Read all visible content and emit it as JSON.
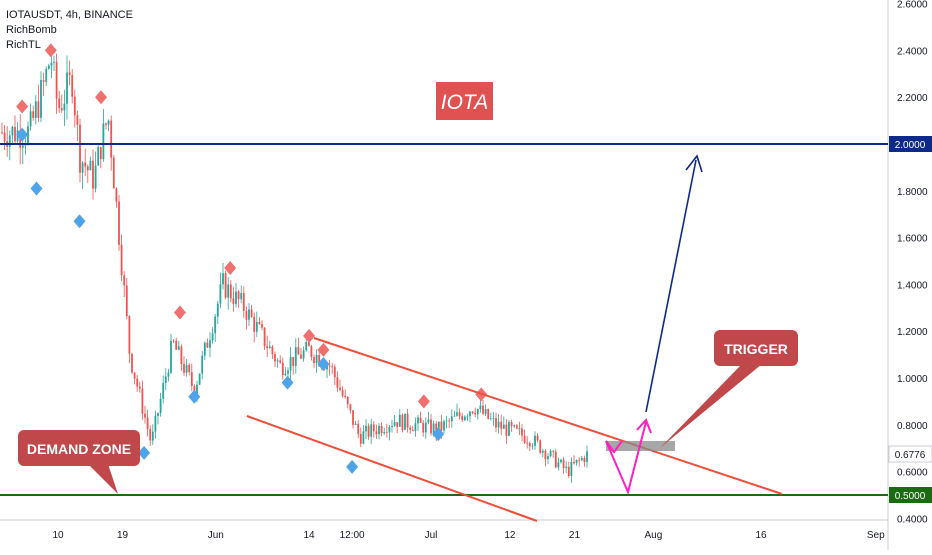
{
  "chart_data": {
    "type": "candlestick",
    "symbol_line": "IOTAUSDT, 4h, BINANCE",
    "indicators": [
      "RichBomb",
      "RichTL"
    ],
    "title_badge": "IOTA",
    "y_ticks": [
      "2.6000",
      "2.4000",
      "2.2000",
      "2.0000",
      "1.8000",
      "1.6000",
      "1.4000",
      "1.2000",
      "1.0000",
      "0.8000",
      "0.6000",
      "0.4000"
    ],
    "x_ticks": [
      "10",
      "19",
      "Jun",
      "14",
      "12:00",
      "Jul",
      "12",
      "21",
      "Aug",
      "16",
      "Sep"
    ],
    "last_price": "0.6776",
    "levels": [
      {
        "label": "2.0000",
        "value": 2.0,
        "color": "#0d2a8a"
      },
      {
        "label": "0.5000",
        "value": 0.5,
        "color": "#1b6b12"
      }
    ],
    "annotations": [
      {
        "text": "TRIGGER"
      },
      {
        "text": "DEMAND ZONE"
      }
    ],
    "ohlc": [
      {
        "x": "2021-05-06",
        "close": 2.05
      },
      {
        "x": "2021-05-08",
        "close": 2.25
      },
      {
        "x": "2021-05-09",
        "close": 2.38
      },
      {
        "x": "2021-05-10",
        "close": 2.15
      },
      {
        "x": "2021-05-12",
        "close": 2.28
      },
      {
        "x": "2021-05-13",
        "close": 1.95
      },
      {
        "x": "2021-05-15",
        "close": 1.85
      },
      {
        "x": "2021-05-16",
        "close": 2.0
      },
      {
        "x": "2021-05-17",
        "close": 2.12
      },
      {
        "x": "2021-05-19",
        "close": 1.45
      },
      {
        "x": "2021-05-20",
        "close": 1.1
      },
      {
        "x": "2021-05-23",
        "close": 0.72
      },
      {
        "x": "2021-05-26",
        "close": 1.15
      },
      {
        "x": "2021-05-29",
        "close": 0.95
      },
      {
        "x": "2021-06-02",
        "close": 1.4
      },
      {
        "x": "2021-06-05",
        "close": 1.3
      },
      {
        "x": "2021-06-10",
        "close": 1.05
      },
      {
        "x": "2021-06-14",
        "close": 1.12
      },
      {
        "x": "2021-06-17",
        "close": 1.05
      },
      {
        "x": "2021-06-21",
        "close": 0.75
      },
      {
        "x": "2021-06-26",
        "close": 0.82
      },
      {
        "x": "2021-07-02",
        "close": 0.78
      },
      {
        "x": "2021-07-07",
        "close": 0.88
      },
      {
        "x": "2021-07-10",
        "close": 0.8
      },
      {
        "x": "2021-07-15",
        "close": 0.74
      },
      {
        "x": "2021-07-20",
        "close": 0.6
      },
      {
        "x": "2021-07-23",
        "close": 0.68
      }
    ],
    "forecast_path": [
      {
        "x": "2021-07-24",
        "y": 0.72
      },
      {
        "x": "2021-07-28",
        "y": 0.52
      },
      {
        "x": "2021-07-30",
        "y": 0.83
      },
      {
        "x": "2021-08-08",
        "y": 1.95
      }
    ],
    "channel_top": [
      {
        "x": "2021-06-14",
        "y": 1.18
      },
      {
        "x": "2021-08-20",
        "y": 0.5
      }
    ],
    "channel_bottom": [
      {
        "x": "2021-06-02",
        "y": 0.85
      },
      {
        "x": "2021-07-14",
        "y": 0.39
      }
    ],
    "colors": {
      "bull": "#26a69a",
      "bear": "#ef5350",
      "channel": "#f04d3a",
      "forecast_up": "#0d2a8a",
      "forecast_v": "#ff1fbf",
      "badge": "#e05252",
      "callout": "#c0484a"
    }
  }
}
